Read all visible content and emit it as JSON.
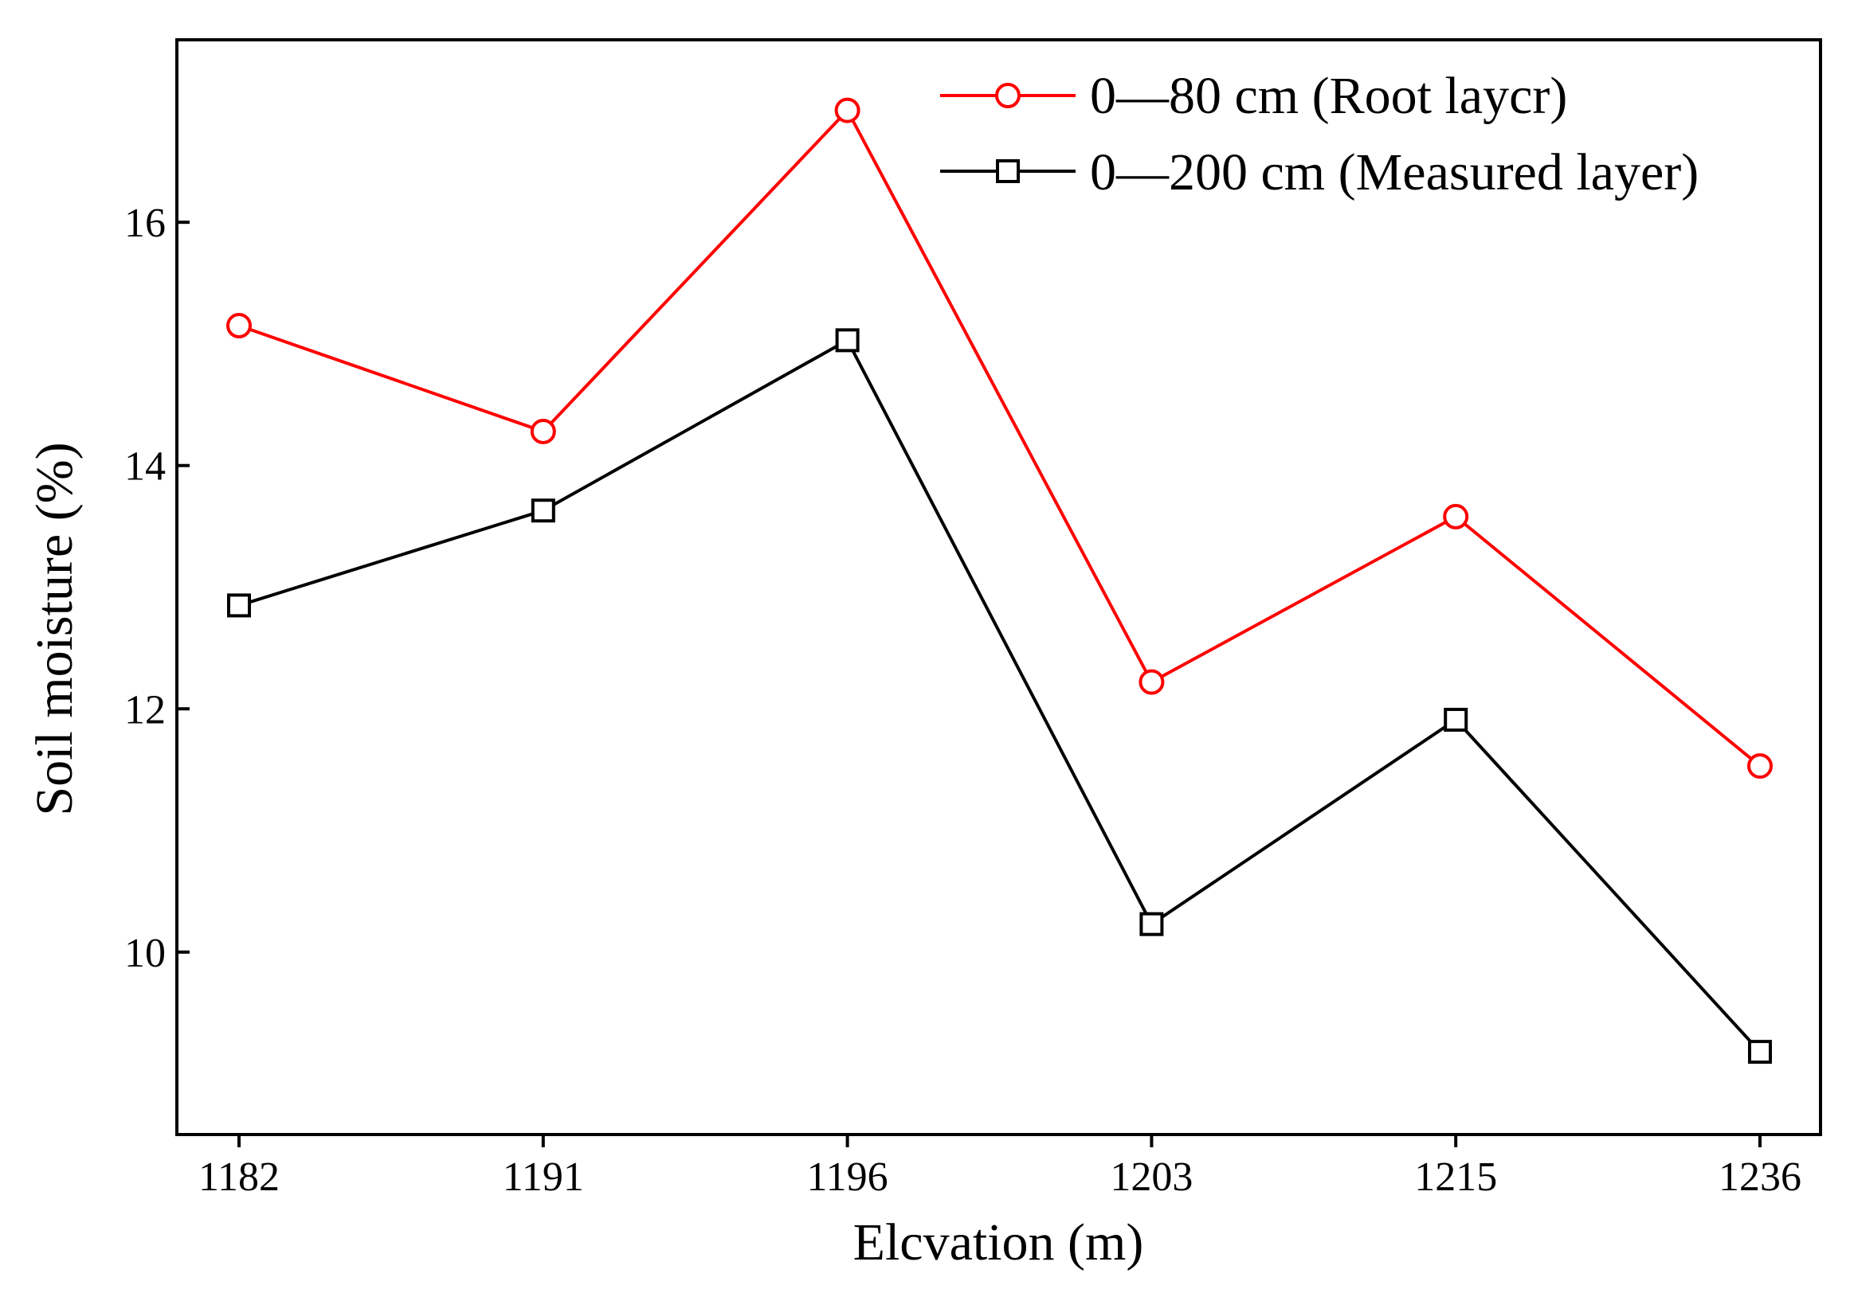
{
  "chart_data": {
    "type": "line",
    "title": "",
    "xlabel": "Elcvation (m)",
    "ylabel": "Soil moisture (%)",
    "categories": [
      "1182",
      "1191",
      "1196",
      "1203",
      "1215",
      "1236"
    ],
    "ylim": [
      8.5,
      17.5
    ],
    "yticks": [
      10,
      12,
      14,
      16
    ],
    "legend_position": "top-right",
    "series": [
      {
        "name": "0—80 cm (Root laycr)",
        "color": "#ff0000",
        "marker": "circle",
        "values": [
          15.15,
          14.28,
          16.92,
          12.22,
          13.58,
          11.53
        ]
      },
      {
        "name": "0—200 cm (Measured layer)",
        "color": "#000000",
        "marker": "square",
        "values": [
          12.85,
          13.63,
          15.03,
          10.23,
          11.91,
          9.18
        ]
      }
    ]
  }
}
